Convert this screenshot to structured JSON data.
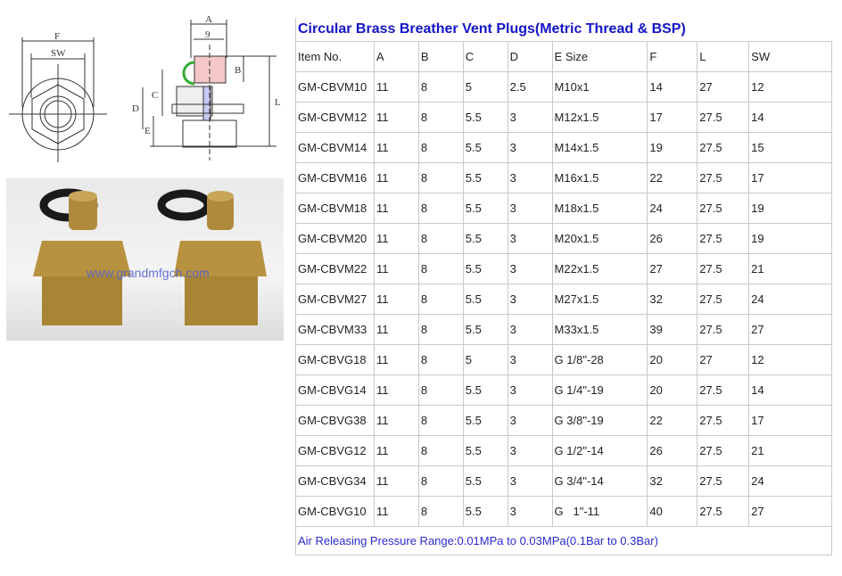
{
  "drawing": {
    "labels": {
      "F": "F",
      "SW": "SW",
      "A": "A",
      "nine": "9",
      "B": "B",
      "C": "C",
      "D": "D",
      "E": "E",
      "L": "L"
    }
  },
  "photo": {
    "watermark": "www.grandmfgch.com"
  },
  "table": {
    "title": "Circular Brass Breather Vent Plugs(Metric Thread & BSP)",
    "headers": [
      "Item No.",
      "A",
      "B",
      "C",
      "D",
      "E Size",
      "F",
      "L",
      "SW"
    ],
    "rows": [
      [
        "GM-CBVM10",
        "11",
        "8",
        "5",
        "2.5",
        "M10x1",
        "14",
        "27",
        "12"
      ],
      [
        "GM-CBVM12",
        "11",
        "8",
        "5.5",
        "3",
        "M12x1.5",
        "17",
        "27.5",
        "14"
      ],
      [
        "GM-CBVM14",
        "11",
        "8",
        "5.5",
        "3",
        "M14x1.5",
        "19",
        "27.5",
        "15"
      ],
      [
        "GM-CBVM16",
        "11",
        "8",
        "5.5",
        "3",
        "M16x1.5",
        "22",
        "27.5",
        "17"
      ],
      [
        "GM-CBVM18",
        "11",
        "8",
        "5.5",
        "3",
        "M18x1.5",
        "24",
        "27.5",
        "19"
      ],
      [
        "GM-CBVM20",
        "11",
        "8",
        "5.5",
        "3",
        "M20x1.5",
        "26",
        "27.5",
        "19"
      ],
      [
        "GM-CBVM22",
        "11",
        "8",
        "5.5",
        "3",
        "M22x1.5",
        "27",
        "27.5",
        "21"
      ],
      [
        "GM-CBVM27",
        "11",
        "8",
        "5.5",
        "3",
        "M27x1.5",
        "32",
        "27.5",
        "24"
      ],
      [
        "GM-CBVM33",
        "11",
        "8",
        "5.5",
        "3",
        "M33x1.5",
        "39",
        "27.5",
        "27"
      ],
      [
        "GM-CBVG18",
        "11",
        "8",
        "5",
        "3",
        "G 1/8\"-28",
        "20",
        "27",
        "12"
      ],
      [
        "GM-CBVG14",
        "11",
        "8",
        "5.5",
        "3",
        "G 1/4\"-19",
        "20",
        "27.5",
        "14"
      ],
      [
        "GM-CBVG38",
        "11",
        "8",
        "5.5",
        "3",
        "G 3/8\"-19",
        "22",
        "27.5",
        "17"
      ],
      [
        "GM-CBVG12",
        "11",
        "8",
        "5.5",
        "3",
        "G 1/2\"-14",
        "26",
        "27.5",
        "21"
      ],
      [
        "GM-CBVG34",
        "11",
        "8",
        "5.5",
        "3",
        "G 3/4\"-14",
        "32",
        "27.5",
        "24"
      ],
      [
        "GM-CBVG10",
        "11",
        "8",
        "5.5",
        "3",
        "G   1\"-11",
        "40",
        "27.5",
        "27"
      ]
    ],
    "footer": "Air Releasing Pressure Range:0.01MPa to 0.03MPa(0.1Bar to 0.3Bar)"
  }
}
